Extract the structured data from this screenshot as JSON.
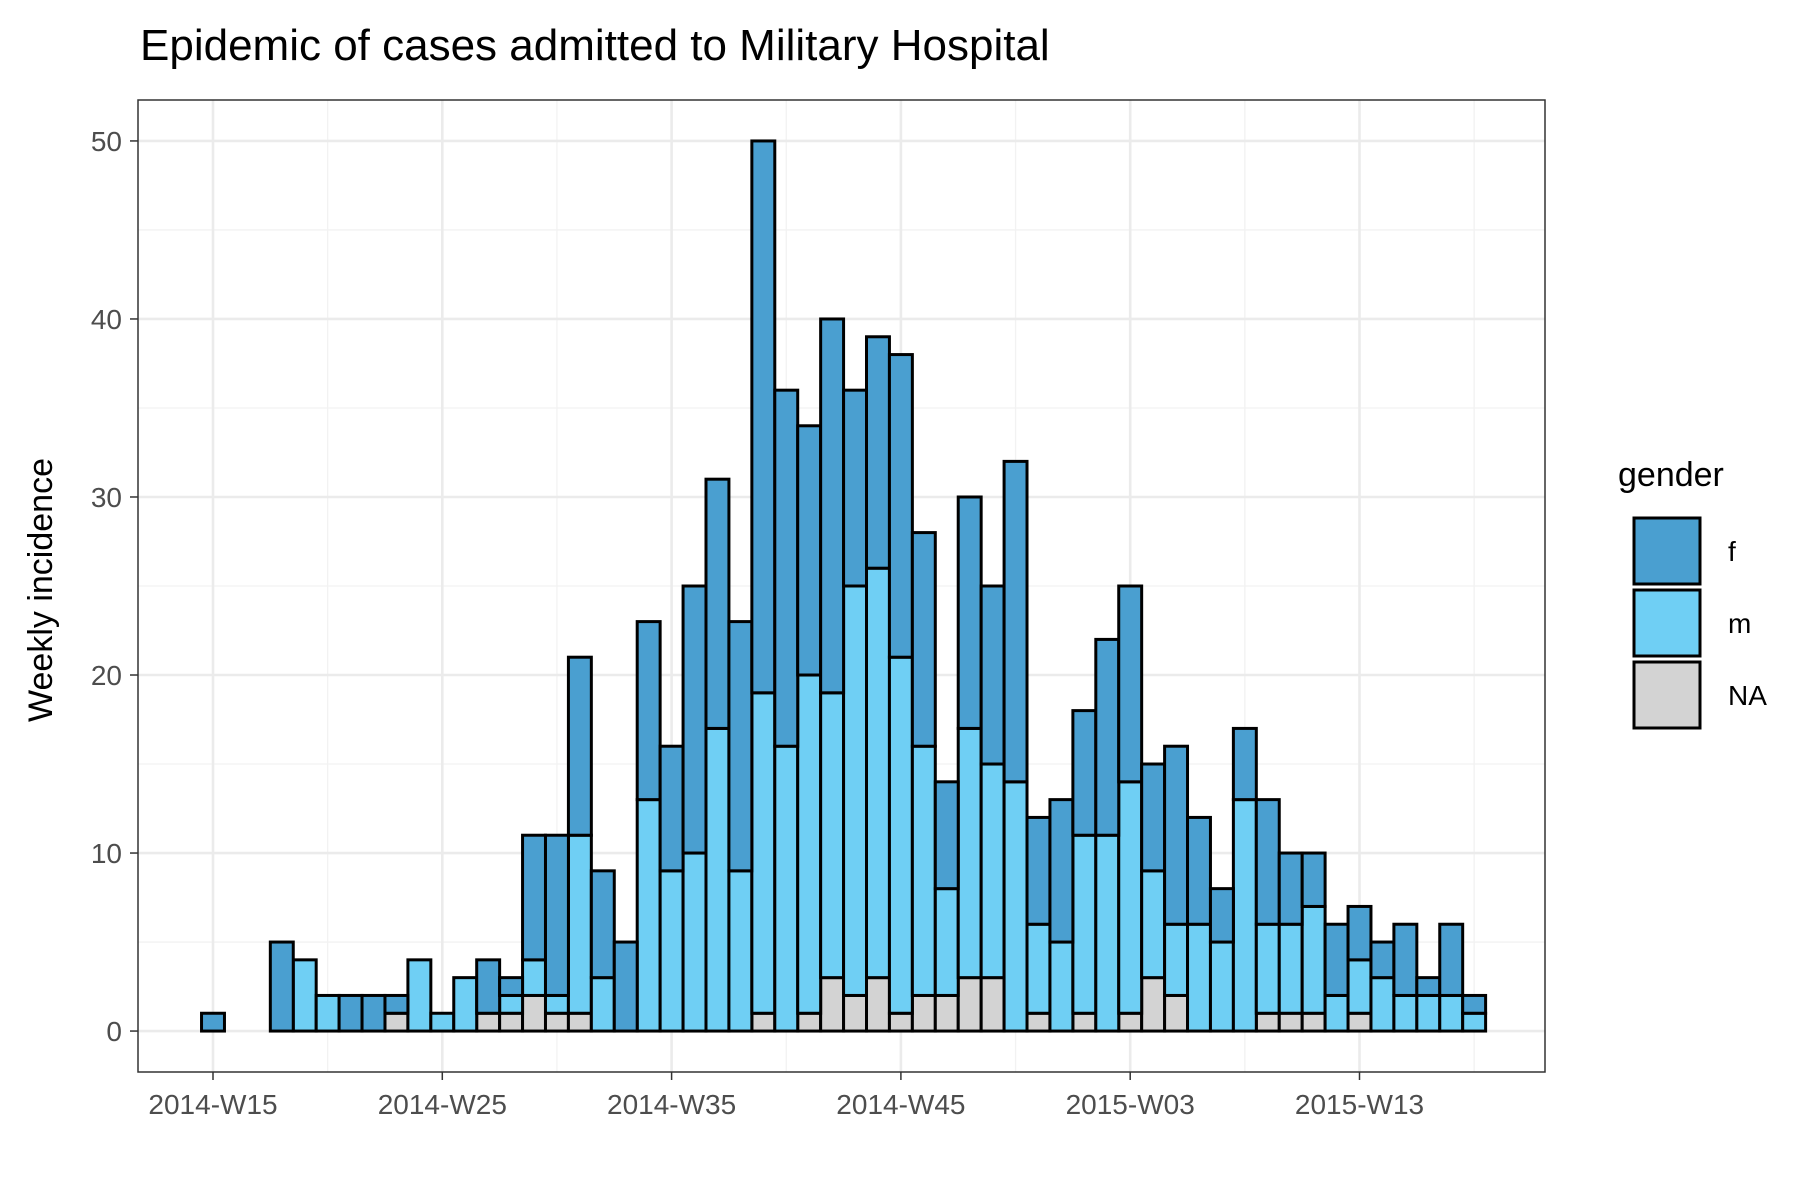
{
  "chart_data": {
    "type": "bar",
    "stacked": true,
    "title": "Epidemic of cases admitted to Military Hospital",
    "xlabel": "",
    "ylabel": "Weekly incidence",
    "ylim": [
      0,
      52
    ],
    "yticks": [
      0,
      10,
      20,
      30,
      40,
      50
    ],
    "grid": true,
    "legend": {
      "title": "gender",
      "position": "right"
    },
    "colors": {
      "f": "#4a9fd0",
      "m": "#6fcff4",
      "NA": "#d3d3d3"
    },
    "categories": [
      "2014-W15",
      "2014-W16",
      "2014-W17",
      "2014-W18",
      "2014-W19",
      "2014-W20",
      "2014-W21",
      "2014-W22",
      "2014-W23",
      "2014-W24",
      "2014-W25",
      "2014-W26",
      "2014-W27",
      "2014-W28",
      "2014-W29",
      "2014-W30",
      "2014-W31",
      "2014-W32",
      "2014-W33",
      "2014-W34",
      "2014-W35",
      "2014-W36",
      "2014-W37",
      "2014-W38",
      "2014-W39",
      "2014-W40",
      "2014-W41",
      "2014-W42",
      "2014-W43",
      "2014-W44",
      "2014-W45",
      "2014-W46",
      "2014-W47",
      "2014-W48",
      "2014-W49",
      "2014-W50",
      "2014-W51",
      "2014-W52",
      "2015-W01",
      "2015-W02",
      "2015-W03",
      "2015-W04",
      "2015-W05",
      "2015-W06",
      "2015-W07",
      "2015-W08",
      "2015-W09",
      "2015-W10",
      "2015-W11",
      "2015-W12",
      "2015-W13",
      "2015-W14",
      "2015-W15",
      "2015-W16",
      "2015-W17",
      "2015-W18"
    ],
    "xtick_labels": [
      "2014-W15",
      "2014-W25",
      "2014-W35",
      "2014-W45",
      "2015-W03",
      "2015-W13"
    ],
    "series": [
      {
        "name": "NA",
        "values": [
          0,
          0,
          0,
          0,
          0,
          0,
          0,
          0,
          1,
          0,
          0,
          0,
          1,
          1,
          2,
          1,
          1,
          0,
          0,
          0,
          0,
          0,
          0,
          0,
          1,
          0,
          1,
          3,
          2,
          3,
          1,
          2,
          2,
          3,
          3,
          0,
          1,
          0,
          1,
          0,
          1,
          3,
          2,
          0,
          0,
          0,
          1,
          1,
          1,
          0,
          1,
          0,
          0,
          0,
          0,
          0
        ]
      },
      {
        "name": "m",
        "values": [
          0,
          0,
          0,
          0,
          4,
          2,
          0,
          0,
          0,
          4,
          1,
          3,
          0,
          1,
          2,
          1,
          10,
          3,
          0,
          13,
          9,
          10,
          17,
          9,
          18,
          16,
          19,
          16,
          23,
          23,
          20,
          14,
          6,
          14,
          12,
          14,
          5,
          5,
          10,
          11,
          13,
          6,
          4,
          6,
          5,
          13,
          5,
          5,
          6,
          2,
          3,
          3,
          2,
          2,
          2,
          1
        ]
      },
      {
        "name": "f",
        "values": [
          1,
          0,
          0,
          5,
          0,
          0,
          2,
          2,
          1,
          0,
          0,
          0,
          3,
          1,
          7,
          9,
          10,
          6,
          5,
          10,
          7,
          15,
          14,
          14,
          31,
          20,
          14,
          21,
          11,
          13,
          17,
          12,
          6,
          13,
          10,
          18,
          6,
          8,
          7,
          11,
          11,
          6,
          10,
          6,
          3,
          4,
          7,
          4,
          3,
          4,
          3,
          2,
          4,
          1,
          4,
          1
        ]
      }
    ]
  }
}
